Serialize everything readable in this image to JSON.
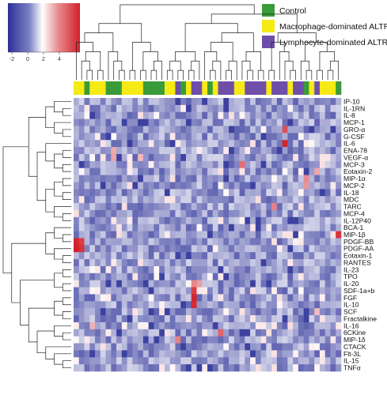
{
  "chart_data": {
    "type": "heatmap",
    "title": "",
    "color_key": {
      "ticks": [
        "-2",
        "0",
        "2",
        "4"
      ],
      "low_color": "#2a2f96",
      "mid_color": "#ffffff",
      "high_color": "#d2202a"
    },
    "legend": {
      "placement": "top-right",
      "entries": [
        {
          "label": "Control",
          "color": "#3a9b3a"
        },
        {
          "label": "Macrophage-dominated ALTR",
          "color": "#f5ea14"
        },
        {
          "label": "Lymphocyte-dominated ALTR",
          "color": "#6f4ea8"
        }
      ]
    },
    "rows": [
      "IP-10",
      "IL-1RN",
      "IL-8",
      "MCP-1",
      "GRO-α",
      "G-CSF",
      "IL-6",
      "ENA-78",
      "VEGF-α",
      "MCP-3",
      "Eotaxin-2",
      "MIP-1α",
      "MCP-2",
      "IL-18",
      "MDC",
      "TARC",
      "MCP-4",
      "IL-12P40",
      "BCA-1",
      "MIP-1β",
      "PDGF-BB",
      "PDGF-AA",
      "Eotaxin-1",
      "RANTES",
      "IL-23",
      "TPO",
      "IL-20",
      "SDF-1a+b",
      "FGF",
      "IL-10",
      "SCF",
      "Fractalkine",
      "IL-16",
      "6CKine",
      "MIP-1δ",
      "CTACK",
      "Flt-3L",
      "IL-15",
      "TNFα"
    ],
    "column_groups": [
      1,
      1,
      0,
      1,
      1,
      1,
      0,
      0,
      0,
      1,
      1,
      1,
      1,
      0,
      0,
      0,
      0,
      1,
      1,
      2,
      0,
      1,
      2,
      2,
      1,
      0,
      1,
      2,
      2,
      2,
      1,
      1,
      2,
      2,
      2,
      2,
      1,
      2,
      2,
      2,
      1,
      2,
      2,
      0,
      1,
      2,
      1,
      1,
      1,
      0
    ],
    "highlights": [
      {
        "row": "PDGF-BB",
        "col": 0,
        "value": 4.5
      },
      {
        "row": "PDGF-BB",
        "col": 1,
        "value": 4.0
      },
      {
        "row": "PDGF-AA",
        "col": 0,
        "value": 4.6
      },
      {
        "row": "PDGF-AA",
        "col": 1,
        "value": 4.2
      },
      {
        "row": "IL-6",
        "col": 39,
        "value": 4.5
      },
      {
        "row": "GRO-α",
        "col": 39,
        "value": 3.6
      },
      {
        "row": "SDF-1a+b",
        "col": 22,
        "value": 4.0
      },
      {
        "row": "FGF",
        "col": 22,
        "value": 4.5
      },
      {
        "row": "IL-10",
        "col": 22,
        "value": 4.4
      },
      {
        "row": "IL-20",
        "col": 22,
        "value": 2.5
      },
      {
        "row": "IL-20",
        "col": 23,
        "value": 2.0
      },
      {
        "row": "MIP-1β",
        "col": 49,
        "value": 4.2
      },
      {
        "row": "MCP-3",
        "col": 31,
        "value": 3.0
      },
      {
        "row": "TARC",
        "col": 37,
        "value": 2.6
      },
      {
        "row": "6CKine",
        "col": 27,
        "value": 3.2
      },
      {
        "row": "MIP-1δ",
        "col": 19,
        "value": 2.6
      },
      {
        "row": "ENA-78",
        "col": 7,
        "value": 1.8
      },
      {
        "row": "VEGF-α",
        "col": 7,
        "value": 1.9
      },
      {
        "row": "VEGF-α",
        "col": 12,
        "value": 1.5
      },
      {
        "row": "MIP-1α",
        "col": 43,
        "value": 2.4
      },
      {
        "row": "MCP-2",
        "col": 43,
        "value": 2.2
      },
      {
        "row": "Eotaxin-2",
        "col": 45,
        "value": 1.8
      },
      {
        "row": "IL-16",
        "col": 3,
        "value": 1.6
      },
      {
        "row": "SCF",
        "col": 45,
        "value": 1.4
      }
    ]
  }
}
